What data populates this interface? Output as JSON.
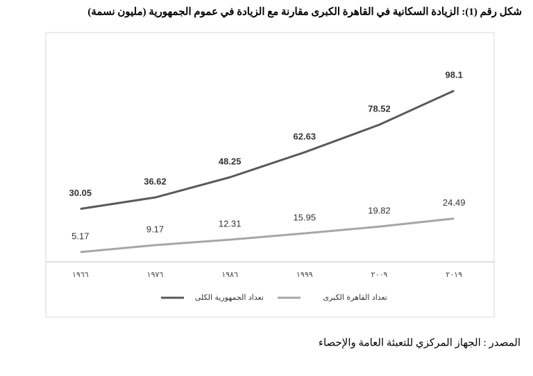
{
  "chart_data": {
    "type": "line",
    "title": "شكل رقم (1): الزيادة السكانية في القاهرة الكبرى مقارنة مع الزيادة في عموم الجمهورية (مليون نسمة)",
    "categories": [
      "١٩٦٦",
      "١٩٧٦",
      "١٩٨٦",
      "١٩٩٩",
      "٢٠٠٩",
      "٢٠١٩"
    ],
    "series": [
      {
        "name": "تعداد الجمهورية الكلى",
        "color": "#595959",
        "values": [
          30.05,
          36.62,
          48.25,
          62.63,
          78.52,
          98.1
        ]
      },
      {
        "name": "تعداد القاهرة الكبرى",
        "color": "#a6a6a6",
        "values": [
          5.17,
          9.17,
          12.31,
          15.95,
          19.82,
          24.49
        ]
      }
    ],
    "legend": "bottom"
  },
  "source": "المصدر : الجهاز المركزي للتعبئة العامة والإحصاء"
}
